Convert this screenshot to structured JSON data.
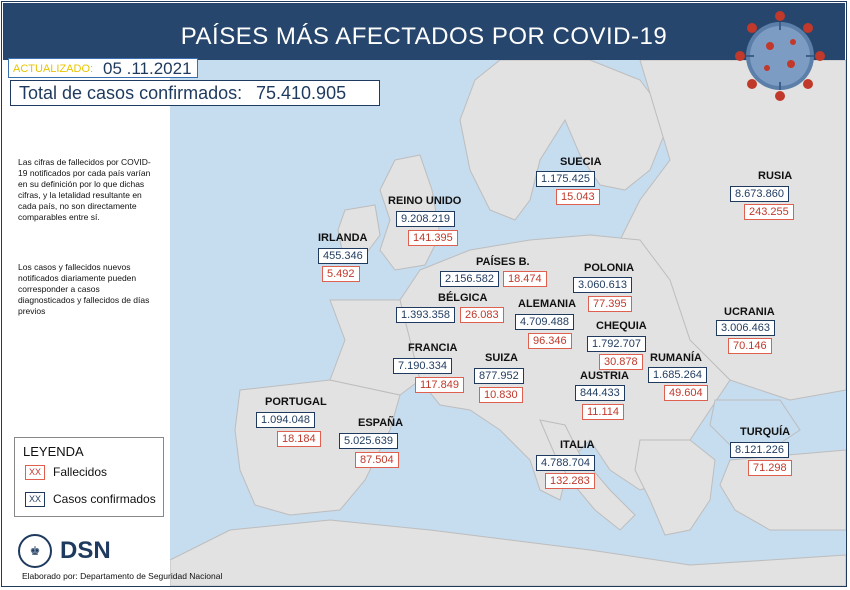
{
  "header": {
    "title": "PAÍSES MÁS AFECTADOS POR COVID-19"
  },
  "updated": {
    "label": "ACTUALIZADO:",
    "date": "05 .11.2021"
  },
  "total": {
    "label": "Total de casos confirmados:",
    "value": "75.410.905"
  },
  "notes": [
    "Las cifras de fallecidos por COVID-19 notificados por cada país varían en su definición por lo que dichas cifras, y la letalidad resultante en cada país, no son directamente comparables entre sí.",
    "Los casos y fallecidos nuevos notificados diariamente pueden corresponder a casos diagnosticados y fallecidos de días previos"
  ],
  "legend": {
    "title": "LEYENDA",
    "swatch_text": "XX",
    "deaths_label": "Fallecidos",
    "cases_label": "Casos confirmados",
    "deaths_color": "#c0392b",
    "cases_color": "#1e3a5f"
  },
  "countries": [
    {
      "name": "SUECIA",
      "cases": "1.175.425",
      "deaths": "15.043"
    },
    {
      "name": "RUSIA",
      "cases": "8.673.860",
      "deaths": "243.255"
    },
    {
      "name": "REINO UNIDO",
      "cases": "9.208.219",
      "deaths": "141.395"
    },
    {
      "name": "IRLANDA",
      "cases": "455.346",
      "deaths": "5.492"
    },
    {
      "name": "PAÍSES B.",
      "cases": "2.156.582",
      "deaths": "18.474"
    },
    {
      "name": "POLONIA",
      "cases": "3.060.613",
      "deaths": "77.395"
    },
    {
      "name": "BÉLGICA",
      "cases": "1.393.358",
      "deaths": "26.083"
    },
    {
      "name": "ALEMANIA",
      "cases": "4.709.488",
      "deaths": "96.346"
    },
    {
      "name": "UCRANIA",
      "cases": "3.006.463",
      "deaths": "70.146"
    },
    {
      "name": "CHEQUIA",
      "cases": "1.792.707",
      "deaths": "30.878"
    },
    {
      "name": "FRANCIA",
      "cases": "7.190.334",
      "deaths": "117.849"
    },
    {
      "name": "SUIZA",
      "cases": "877.952",
      "deaths": "10.830"
    },
    {
      "name": "RUMANÍA",
      "cases": "1.685.264",
      "deaths": "49.604"
    },
    {
      "name": "AUSTRIA",
      "cases": "844.433",
      "deaths": "11.114"
    },
    {
      "name": "PORTUGAL",
      "cases": "1.094.048",
      "deaths": "18.184"
    },
    {
      "name": "ESPAÑA",
      "cases": "5.025.639",
      "deaths": "87.504"
    },
    {
      "name": "TURQUÍA",
      "cases": "8.121.226",
      "deaths": "71.298"
    },
    {
      "name": "ITALIA",
      "cases": "4.788.704",
      "deaths": "132.283"
    }
  ],
  "logo": {
    "text": "DSN",
    "icon": "coat-of-arms-icon"
  },
  "footer": {
    "credit": "Elaborado por: Departamento de Seguridad Nacional"
  },
  "colors": {
    "header": "#26466d",
    "sea": "#c6dcef",
    "land": "#e2e2e2",
    "cases": "#1e3a5f",
    "deaths": "#c0392b"
  }
}
